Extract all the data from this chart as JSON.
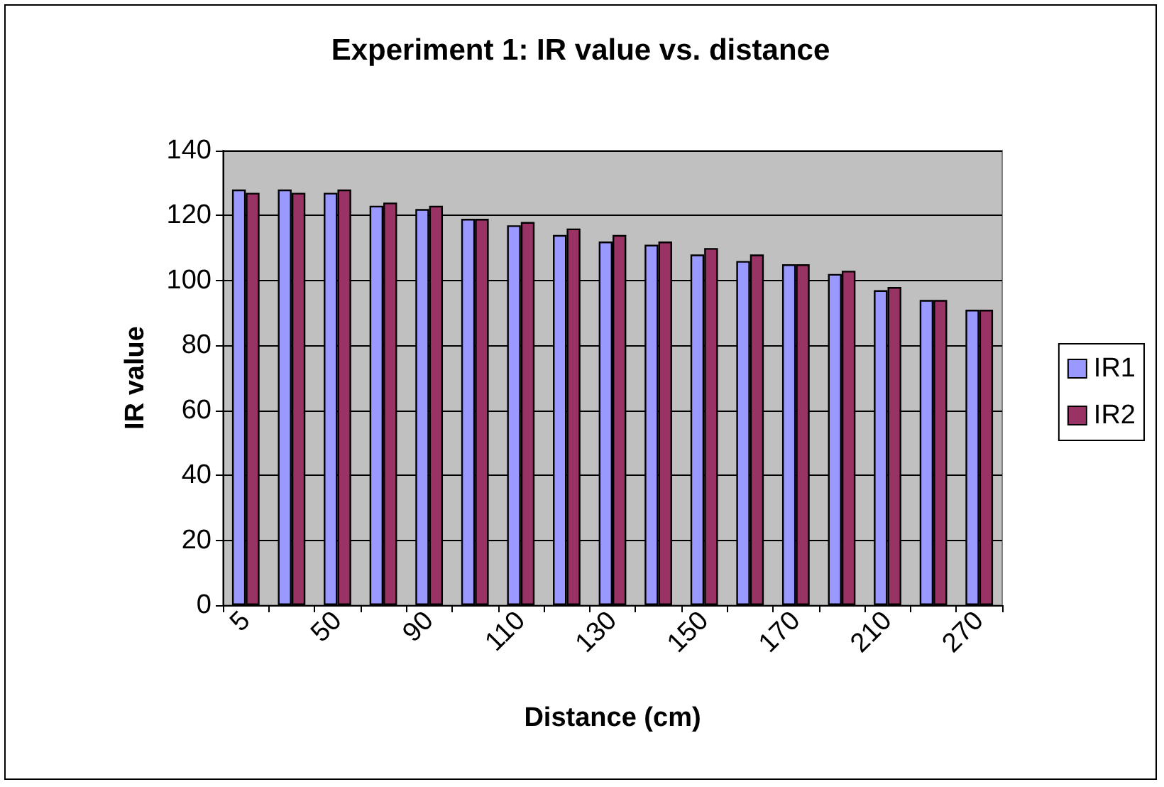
{
  "chart_data": {
    "type": "bar",
    "title": "Experiment 1: IR value vs. distance",
    "xlabel": "Distance (cm)",
    "ylabel": "IR value",
    "categories": [
      "5",
      null,
      "50",
      null,
      "90",
      null,
      "110",
      null,
      "130",
      null,
      "150",
      null,
      "170",
      null,
      "210",
      null,
      "270"
    ],
    "series": [
      {
        "name": "IR1",
        "color": "#9999ff",
        "values": [
          128,
          128,
          127,
          123,
          122,
          119,
          117,
          114,
          112,
          111,
          108,
          106,
          105,
          102,
          97,
          94,
          91
        ]
      },
      {
        "name": "IR2",
        "color": "#993366",
        "values": [
          127,
          127,
          128,
          124,
          123,
          119,
          118,
          116,
          114,
          112,
          110,
          108,
          105,
          103,
          98,
          94,
          91
        ]
      }
    ],
    "ylim": [
      0,
      140
    ],
    "yticks": [
      0,
      20,
      40,
      60,
      80,
      100,
      120,
      140
    ],
    "grid": "y",
    "legend": "right"
  }
}
